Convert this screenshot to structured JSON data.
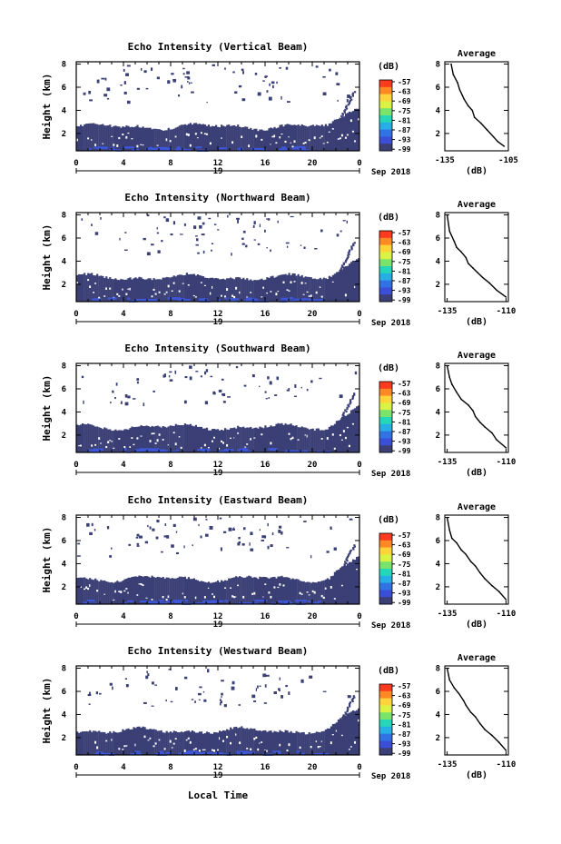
{
  "figure": {
    "xlabel": "Local Time",
    "colors": {
      "background": "#ffffff",
      "axis": "#000000",
      "echo_dark": "#3a3f75",
      "echo_blue": "#3e57d8"
    }
  },
  "colorbar": {
    "unit_label": "(dB)",
    "ticks": [
      "-57",
      "-63",
      "-69",
      "-75",
      "-81",
      "-87",
      "-93",
      "-99"
    ],
    "colors": [
      "#ff3b1f",
      "#ff8a25",
      "#ffd43a",
      "#d9f245",
      "#79e36c",
      "#25d6b8",
      "#27aee5",
      "#3273e3",
      "#3b4fd6",
      "#3b3f76"
    ]
  },
  "chart_data": [
    {
      "type": "heatmap",
      "title": "Echo Intensity (Vertical Beam)",
      "ylabel": "Height (km)",
      "xlabel": "",
      "x_ticks": [
        "0",
        "4",
        "8",
        "12",
        "16",
        "20",
        "0"
      ],
      "y_ticks": [
        "2",
        "4",
        "6",
        "8"
      ],
      "xlim": [
        0,
        24
      ],
      "ylim": [
        0.5,
        8.2
      ],
      "date_label": "19",
      "month_year": "Sep 2018",
      "dense_layer_top_km": 2.6,
      "noisy_features": "scattered echoes from 5 to 8 km; rising echo near 23 h",
      "color_scale": "-99 to -57 dB"
    },
    {
      "type": "heatmap",
      "title": "Echo Intensity (Northward Beam)",
      "ylabel": "Height (km)",
      "xlabel": "",
      "x_ticks": [
        "0",
        "4",
        "8",
        "12",
        "16",
        "20",
        "0"
      ],
      "y_ticks": [
        "2",
        "4",
        "6",
        "8"
      ],
      "xlim": [
        0,
        24
      ],
      "ylim": [
        0.5,
        8.2
      ],
      "date_label": "19",
      "month_year": "Sep 2018",
      "dense_layer_top_km": 2.6,
      "noisy_features": "scattered echoes from 5 to 8 km; rising echo near 23 h",
      "color_scale": "-99 to -57 dB"
    },
    {
      "type": "heatmap",
      "title": "Echo Intensity (Southward Beam)",
      "ylabel": "Height (km)",
      "xlabel": "",
      "x_ticks": [
        "0",
        "4",
        "8",
        "12",
        "16",
        "20",
        "0"
      ],
      "y_ticks": [
        "2",
        "4",
        "6",
        "8"
      ],
      "xlim": [
        0,
        24
      ],
      "ylim": [
        0.5,
        8.2
      ],
      "date_label": "19",
      "month_year": "Sep 2018",
      "dense_layer_top_km": 2.7,
      "noisy_features": "scattered echoes from 5 to 8 km; rising echo near 23 h",
      "color_scale": "-99 to -57 dB"
    },
    {
      "type": "heatmap",
      "title": "Echo Intensity (Eastward Beam)",
      "ylabel": "Height (km)",
      "xlabel": "",
      "x_ticks": [
        "0",
        "4",
        "8",
        "12",
        "16",
        "20",
        "0"
      ],
      "y_ticks": [
        "2",
        "4",
        "6",
        "8"
      ],
      "xlim": [
        0,
        24
      ],
      "ylim": [
        0.5,
        8.2
      ],
      "date_label": "19",
      "month_year": "Sep 2018",
      "dense_layer_top_km": 2.7,
      "noisy_features": "scattered echoes from 5 to 8 km; rising echo near 23 h",
      "color_scale": "-99 to -57 dB"
    },
    {
      "type": "heatmap",
      "title": "Echo Intensity (Westward Beam)",
      "ylabel": "Height (km)",
      "xlabel": "Local Time",
      "x_ticks": [
        "0",
        "4",
        "8",
        "12",
        "16",
        "20",
        "0"
      ],
      "y_ticks": [
        "2",
        "4",
        "6",
        "8"
      ],
      "xlim": [
        0,
        24
      ],
      "ylim": [
        0.5,
        8.2
      ],
      "date_label": "19",
      "month_year": "Sep 2018",
      "dense_layer_top_km": 2.6,
      "noisy_features": "scattered echoes from 5 to 8 km; rising echo near 23 h",
      "color_scale": "-99 to -57 dB"
    },
    {
      "type": "line",
      "title": "Average",
      "xlabel": "(dB)",
      "ylabel": "",
      "x_ticks": [
        "-135",
        "-105"
      ],
      "y_ticks": [
        "2",
        "4",
        "6",
        "8"
      ],
      "xlim": [
        -135,
        -105
      ],
      "ylim": [
        0.5,
        8.2
      ],
      "x": [
        -132,
        -131,
        -129,
        -128,
        -126,
        -124,
        -122,
        -121,
        -118,
        -115,
        -112,
        -110,
        -107
      ],
      "y": [
        8.0,
        7.1,
        6.4,
        5.8,
        5.0,
        4.4,
        4.0,
        3.4,
        2.9,
        2.3,
        1.7,
        1.3,
        0.9
      ]
    },
    {
      "type": "line",
      "title": "Average",
      "xlabel": "(dB)",
      "ylabel": "",
      "x_ticks": [
        "-135",
        "-110"
      ],
      "y_ticks": [
        "2",
        "4",
        "6",
        "8"
      ],
      "xlim": [
        -136,
        -109
      ],
      "ylim": [
        0.5,
        8.2
      ],
      "x": [
        -135,
        -134,
        -132,
        -131,
        -129,
        -127,
        -126,
        -124,
        -122,
        -120,
        -117,
        -114,
        -110
      ],
      "y": [
        8.0,
        6.6,
        5.7,
        5.2,
        4.8,
        4.3,
        3.8,
        3.4,
        3.0,
        2.6,
        2.1,
        1.5,
        0.9
      ]
    },
    {
      "type": "line",
      "title": "Average",
      "xlabel": "(dB)",
      "ylabel": "",
      "x_ticks": [
        "-135",
        "-110"
      ],
      "y_ticks": [
        "2",
        "4",
        "6",
        "8"
      ],
      "xlim": [
        -136,
        -109
      ],
      "ylim": [
        0.5,
        8.2
      ],
      "x": [
        -135,
        -134,
        -133,
        -131,
        -129,
        -126,
        -124,
        -123,
        -121,
        -119,
        -116,
        -114,
        -110
      ],
      "y": [
        8.0,
        7.0,
        6.4,
        5.7,
        5.1,
        4.6,
        4.1,
        3.6,
        3.1,
        2.7,
        2.2,
        1.6,
        0.9
      ]
    },
    {
      "type": "line",
      "title": "Average",
      "xlabel": "(dB)",
      "ylabel": "",
      "x_ticks": [
        "-135",
        "-110"
      ],
      "y_ticks": [
        "2",
        "4",
        "6",
        "8"
      ],
      "xlim": [
        -136,
        -109
      ],
      "ylim": [
        0.5,
        8.2
      ],
      "x": [
        -135,
        -134,
        -133,
        -131,
        -129,
        -127,
        -125,
        -123,
        -121,
        -119,
        -116,
        -113,
        -110
      ],
      "y": [
        8.0,
        6.9,
        6.2,
        5.8,
        5.2,
        4.8,
        4.2,
        3.8,
        3.2,
        2.7,
        2.1,
        1.6,
        0.9
      ]
    },
    {
      "type": "line",
      "title": "Average",
      "xlabel": "(dB)",
      "ylabel": "",
      "x_ticks": [
        "-135",
        "-110"
      ],
      "y_ticks": [
        "2",
        "4",
        "6",
        "8"
      ],
      "xlim": [
        -136,
        -109
      ],
      "ylim": [
        0.5,
        8.2
      ],
      "x": [
        -135,
        -134,
        -132,
        -130,
        -128,
        -127,
        -125,
        -123,
        -121,
        -119,
        -116,
        -113,
        -110
      ],
      "y": [
        8.0,
        7.0,
        6.3,
        5.8,
        5.2,
        4.8,
        4.2,
        3.8,
        3.2,
        2.7,
        2.2,
        1.6,
        0.9
      ]
    }
  ]
}
